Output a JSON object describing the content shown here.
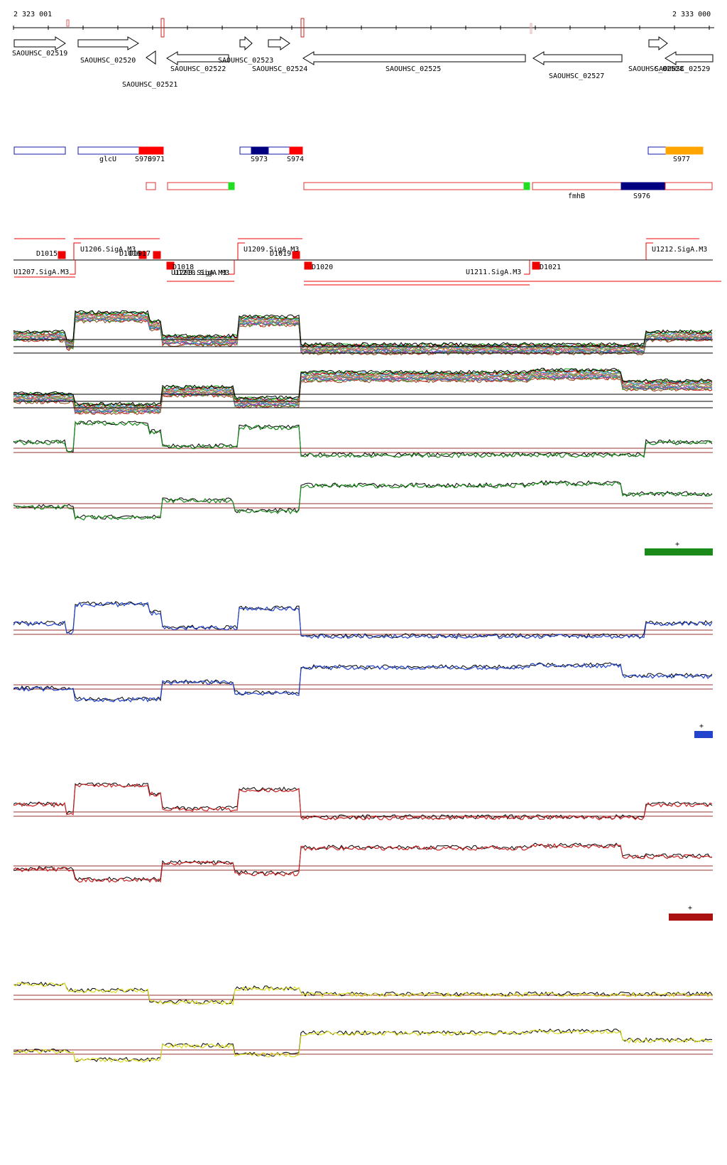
{
  "coordinates": {
    "start": "2 323 001",
    "end": "2 333 000"
  },
  "genes": [
    {
      "label": "SAOUHSC_02519"
    },
    {
      "label": "SAOUHSC_02520"
    },
    {
      "label": "SAOUHSC_02521"
    },
    {
      "label": "SAOUHSC_02522"
    },
    {
      "label": "SAOUHSC_02523"
    },
    {
      "label": "SAOUHSC_02524"
    },
    {
      "label": "SAOUHSC_02525"
    },
    {
      "label": "SAOUHSC_02527"
    },
    {
      "label": "SAOUHSC_02528"
    },
    {
      "label": "SAOUHSC_02529"
    }
  ],
  "features": {
    "forward": [
      {
        "label": "glcU"
      },
      {
        "label": "S970"
      },
      {
        "label": "S971"
      },
      {
        "label": "S973"
      },
      {
        "label": "S974"
      },
      {
        "label": "S977"
      }
    ],
    "reverse": [
      {
        "label": "fmhB"
      },
      {
        "label": "S976"
      }
    ]
  },
  "promoters": [
    {
      "label": "D1015"
    },
    {
      "label": "U1206.SigA.M3"
    },
    {
      "label": "D1016"
    },
    {
      "label": "D1017"
    },
    {
      "label": "U1207.SigA.M3"
    },
    {
      "label": "D1018"
    },
    {
      "label": "U1208.SigA.M3"
    },
    {
      "label": "U1210.SigA.M3"
    },
    {
      "label": "U1209.SigA.M3"
    },
    {
      "label": "D1019"
    },
    {
      "label": "D1020"
    },
    {
      "label": "U1211.SigA.M3"
    },
    {
      "label": "D1021"
    },
    {
      "label": "U1212.SigA.M3"
    }
  ],
  "legend_mark": "+",
  "colors": {
    "gene_outline": "#000000",
    "feature_forward": "#1a1aaa",
    "feature_reverse": "#e03030",
    "feature_red_fill": "#ff0000",
    "feature_navy_fill": "#000080",
    "feature_orange_fill": "#ffa500",
    "feature_green": "#22dd22",
    "promoter": "#ee0000",
    "reference_line": "#993333",
    "green_track": "#1a8a1a",
    "blue_track": "#2244cc",
    "red_track": "#cc2222",
    "yellow_track": "#dddd22",
    "trace_black": "#000000"
  },
  "tracks": [
    {
      "color_key": "green_track"
    },
    {
      "color_key": "blue_track"
    },
    {
      "color_key": "red_track"
    },
    {
      "color_key": "yellow_track"
    }
  ]
}
